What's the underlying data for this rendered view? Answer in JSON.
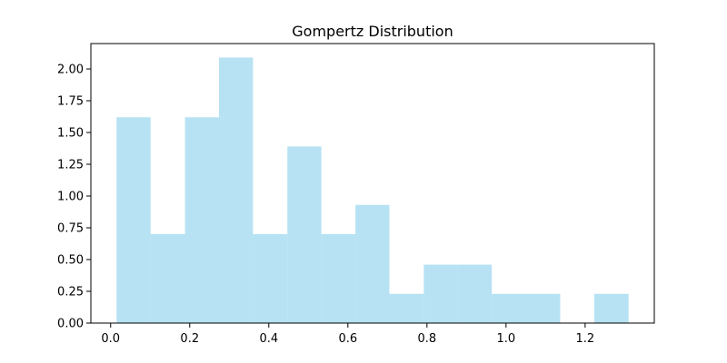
{
  "chart_data": {
    "type": "bar",
    "title": "Gompertz Distribution",
    "xlabel": "",
    "ylabel": "",
    "bin_edges": [
      0.015,
      0.101,
      0.188,
      0.274,
      0.36,
      0.447,
      0.533,
      0.619,
      0.705,
      0.792,
      0.878,
      0.964,
      1.051,
      1.137,
      1.223,
      1.31
    ],
    "values": [
      1.62,
      0.7,
      1.62,
      2.09,
      0.7,
      1.39,
      0.7,
      0.93,
      0.23,
      0.46,
      0.46,
      0.23,
      0.23,
      0.0,
      0.23
    ],
    "xlim": [
      -0.05,
      1.375
    ],
    "ylim": [
      0,
      2.2
    ],
    "x_ticks": [
      0.0,
      0.2,
      0.4,
      0.6,
      0.8,
      1.0,
      1.2
    ],
    "x_tick_labels": [
      "0.0",
      "0.2",
      "0.4",
      "0.6",
      "0.8",
      "1.0",
      "1.2"
    ],
    "y_ticks": [
      0.0,
      0.25,
      0.5,
      0.75,
      1.0,
      1.25,
      1.5,
      1.75,
      2.0
    ],
    "y_tick_labels": [
      "0.00",
      "0.25",
      "0.50",
      "0.75",
      "1.00",
      "1.25",
      "1.50",
      "1.75",
      "2.00"
    ],
    "bar_color": "#87ceeb",
    "bar_opacity": 0.6,
    "grid": false,
    "legend": "none"
  }
}
